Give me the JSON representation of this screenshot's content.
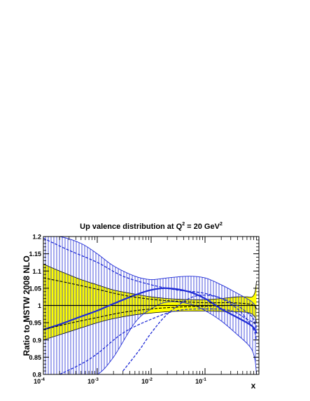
{
  "chart_data": {
    "type": "line",
    "title_main": "Up valence distribution at Q",
    "title_sup1": "2",
    "title_mid": " = 20 GeV",
    "title_sup2": "2",
    "xlabel": "x",
    "ylabel": "Ratio to MSTW 2008 NLO",
    "x_scale": "log",
    "xlim": [
      0.0001,
      1
    ],
    "ylim": [
      0.8,
      1.2
    ],
    "x_ticks": [
      {
        "base": "10",
        "exp": "-4"
      },
      {
        "base": "10",
        "exp": "-3"
      },
      {
        "base": "10",
        "exp": "-2"
      },
      {
        "base": "10",
        "exp": "-1"
      }
    ],
    "y_ticks": [
      "0.8",
      "0.85",
      "0.9",
      "0.95",
      "1",
      "1.05",
      "1.1",
      "1.15",
      "1.2"
    ],
    "y_tick_values": [
      0.8,
      0.85,
      0.9,
      0.95,
      1.0,
      1.05,
      1.1,
      1.15,
      1.2
    ],
    "colors": {
      "mstw_band": "#ffff00",
      "alt_band": "#1f2bd6",
      "central_alt": "#1f2bd6",
      "reference": "#000000"
    },
    "series": [
      {
        "kind": "band",
        "style": "mstw-yellow",
        "x": [
          0.0001,
          0.0002,
          0.0005,
          0.001,
          0.002,
          0.005,
          0.01,
          0.02,
          0.05,
          0.1,
          0.2,
          0.4,
          0.6,
          0.75,
          0.85,
          0.9
        ],
        "upper": [
          1.12,
          1.1,
          1.075,
          1.06,
          1.045,
          1.033,
          1.025,
          1.02,
          1.017,
          1.017,
          1.02,
          1.025,
          1.025,
          1.025,
          1.04,
          1.07
        ],
        "lower": [
          0.9,
          0.915,
          0.935,
          0.95,
          0.962,
          0.973,
          0.978,
          0.982,
          0.984,
          0.984,
          0.983,
          0.982,
          0.98,
          0.975,
          0.965,
          0.95
        ]
      },
      {
        "kind": "band",
        "style": "alt-hatched",
        "x": [
          0.0001,
          0.0002,
          0.0005,
          0.001,
          0.002,
          0.005,
          0.01,
          0.02,
          0.05,
          0.1,
          0.2,
          0.4,
          0.6,
          0.75,
          0.85,
          0.9
        ],
        "upper": [
          1.2,
          1.2,
          1.18,
          1.15,
          1.115,
          1.085,
          1.075,
          1.08,
          1.085,
          1.08,
          1.06,
          1.035,
          1.02,
          1.01,
          1.0,
          0.99
        ],
        "lower": [
          0.8,
          0.8,
          0.8,
          0.8,
          0.85,
          0.95,
          0.99,
          1.01,
          1.005,
          0.985,
          0.955,
          0.915,
          0.89,
          0.87,
          0.84,
          0.8
        ]
      },
      {
        "kind": "line",
        "style": "alt-central",
        "x": [
          0.0001,
          0.0002,
          0.0005,
          0.001,
          0.002,
          0.005,
          0.01,
          0.02,
          0.05,
          0.1,
          0.2,
          0.4,
          0.6,
          0.75,
          0.85,
          0.9
        ],
        "y": [
          0.93,
          0.945,
          0.968,
          0.985,
          1.005,
          1.03,
          1.045,
          1.05,
          1.04,
          1.02,
          0.99,
          0.965,
          0.95,
          0.94,
          0.93,
          0.92
        ]
      },
      {
        "kind": "line",
        "style": "mstw-dashed",
        "x": [
          0.0001,
          0.0003,
          0.001,
          0.003,
          0.01,
          0.03,
          0.1,
          0.3,
          0.6,
          0.8,
          0.9
        ],
        "y": [
          1.08,
          1.065,
          1.047,
          1.03,
          1.018,
          1.012,
          1.008,
          1.008,
          1.005,
          1.0,
          0.99
        ]
      },
      {
        "kind": "line",
        "style": "mstw-dashed",
        "x": [
          0.0001,
          0.0003,
          0.001,
          0.003,
          0.01,
          0.03,
          0.1,
          0.3,
          0.6,
          0.8,
          0.9
        ],
        "y": [
          0.93,
          0.948,
          0.965,
          0.98,
          0.99,
          0.995,
          0.998,
          1.0,
          1.0,
          1.0,
          1.0
        ]
      },
      {
        "kind": "line",
        "style": "alt-dashed",
        "x": [
          0.0001,
          0.0003,
          0.001,
          0.003,
          0.01,
          0.03,
          0.1,
          0.3,
          0.6,
          0.8,
          0.9
        ],
        "y": [
          1.195,
          1.16,
          1.125,
          1.085,
          1.06,
          1.045,
          1.035,
          1.01,
          0.98,
          0.96,
          0.93
        ]
      },
      {
        "kind": "line",
        "style": "alt-dashed",
        "x": [
          0.0002,
          0.0005,
          0.001,
          0.003,
          0.01,
          0.03,
          0.1,
          0.3,
          0.6,
          0.8,
          0.9
        ],
        "y": [
          0.8,
          0.83,
          0.86,
          0.92,
          0.96,
          0.985,
          0.99,
          0.985,
          0.96,
          0.95,
          0.94
        ]
      },
      {
        "kind": "line",
        "style": "alt-dashed",
        "x": [
          0.003,
          0.006,
          0.01,
          0.02,
          0.05,
          0.1,
          0.2,
          0.4,
          0.6,
          0.8,
          0.9
        ],
        "y": [
          0.81,
          0.87,
          0.92,
          0.975,
          1.02,
          1.03,
          1.02,
          0.99,
          0.96,
          0.93,
          0.9
        ]
      }
    ],
    "reference_line": 1.0,
    "grid": false,
    "legend": "none"
  }
}
